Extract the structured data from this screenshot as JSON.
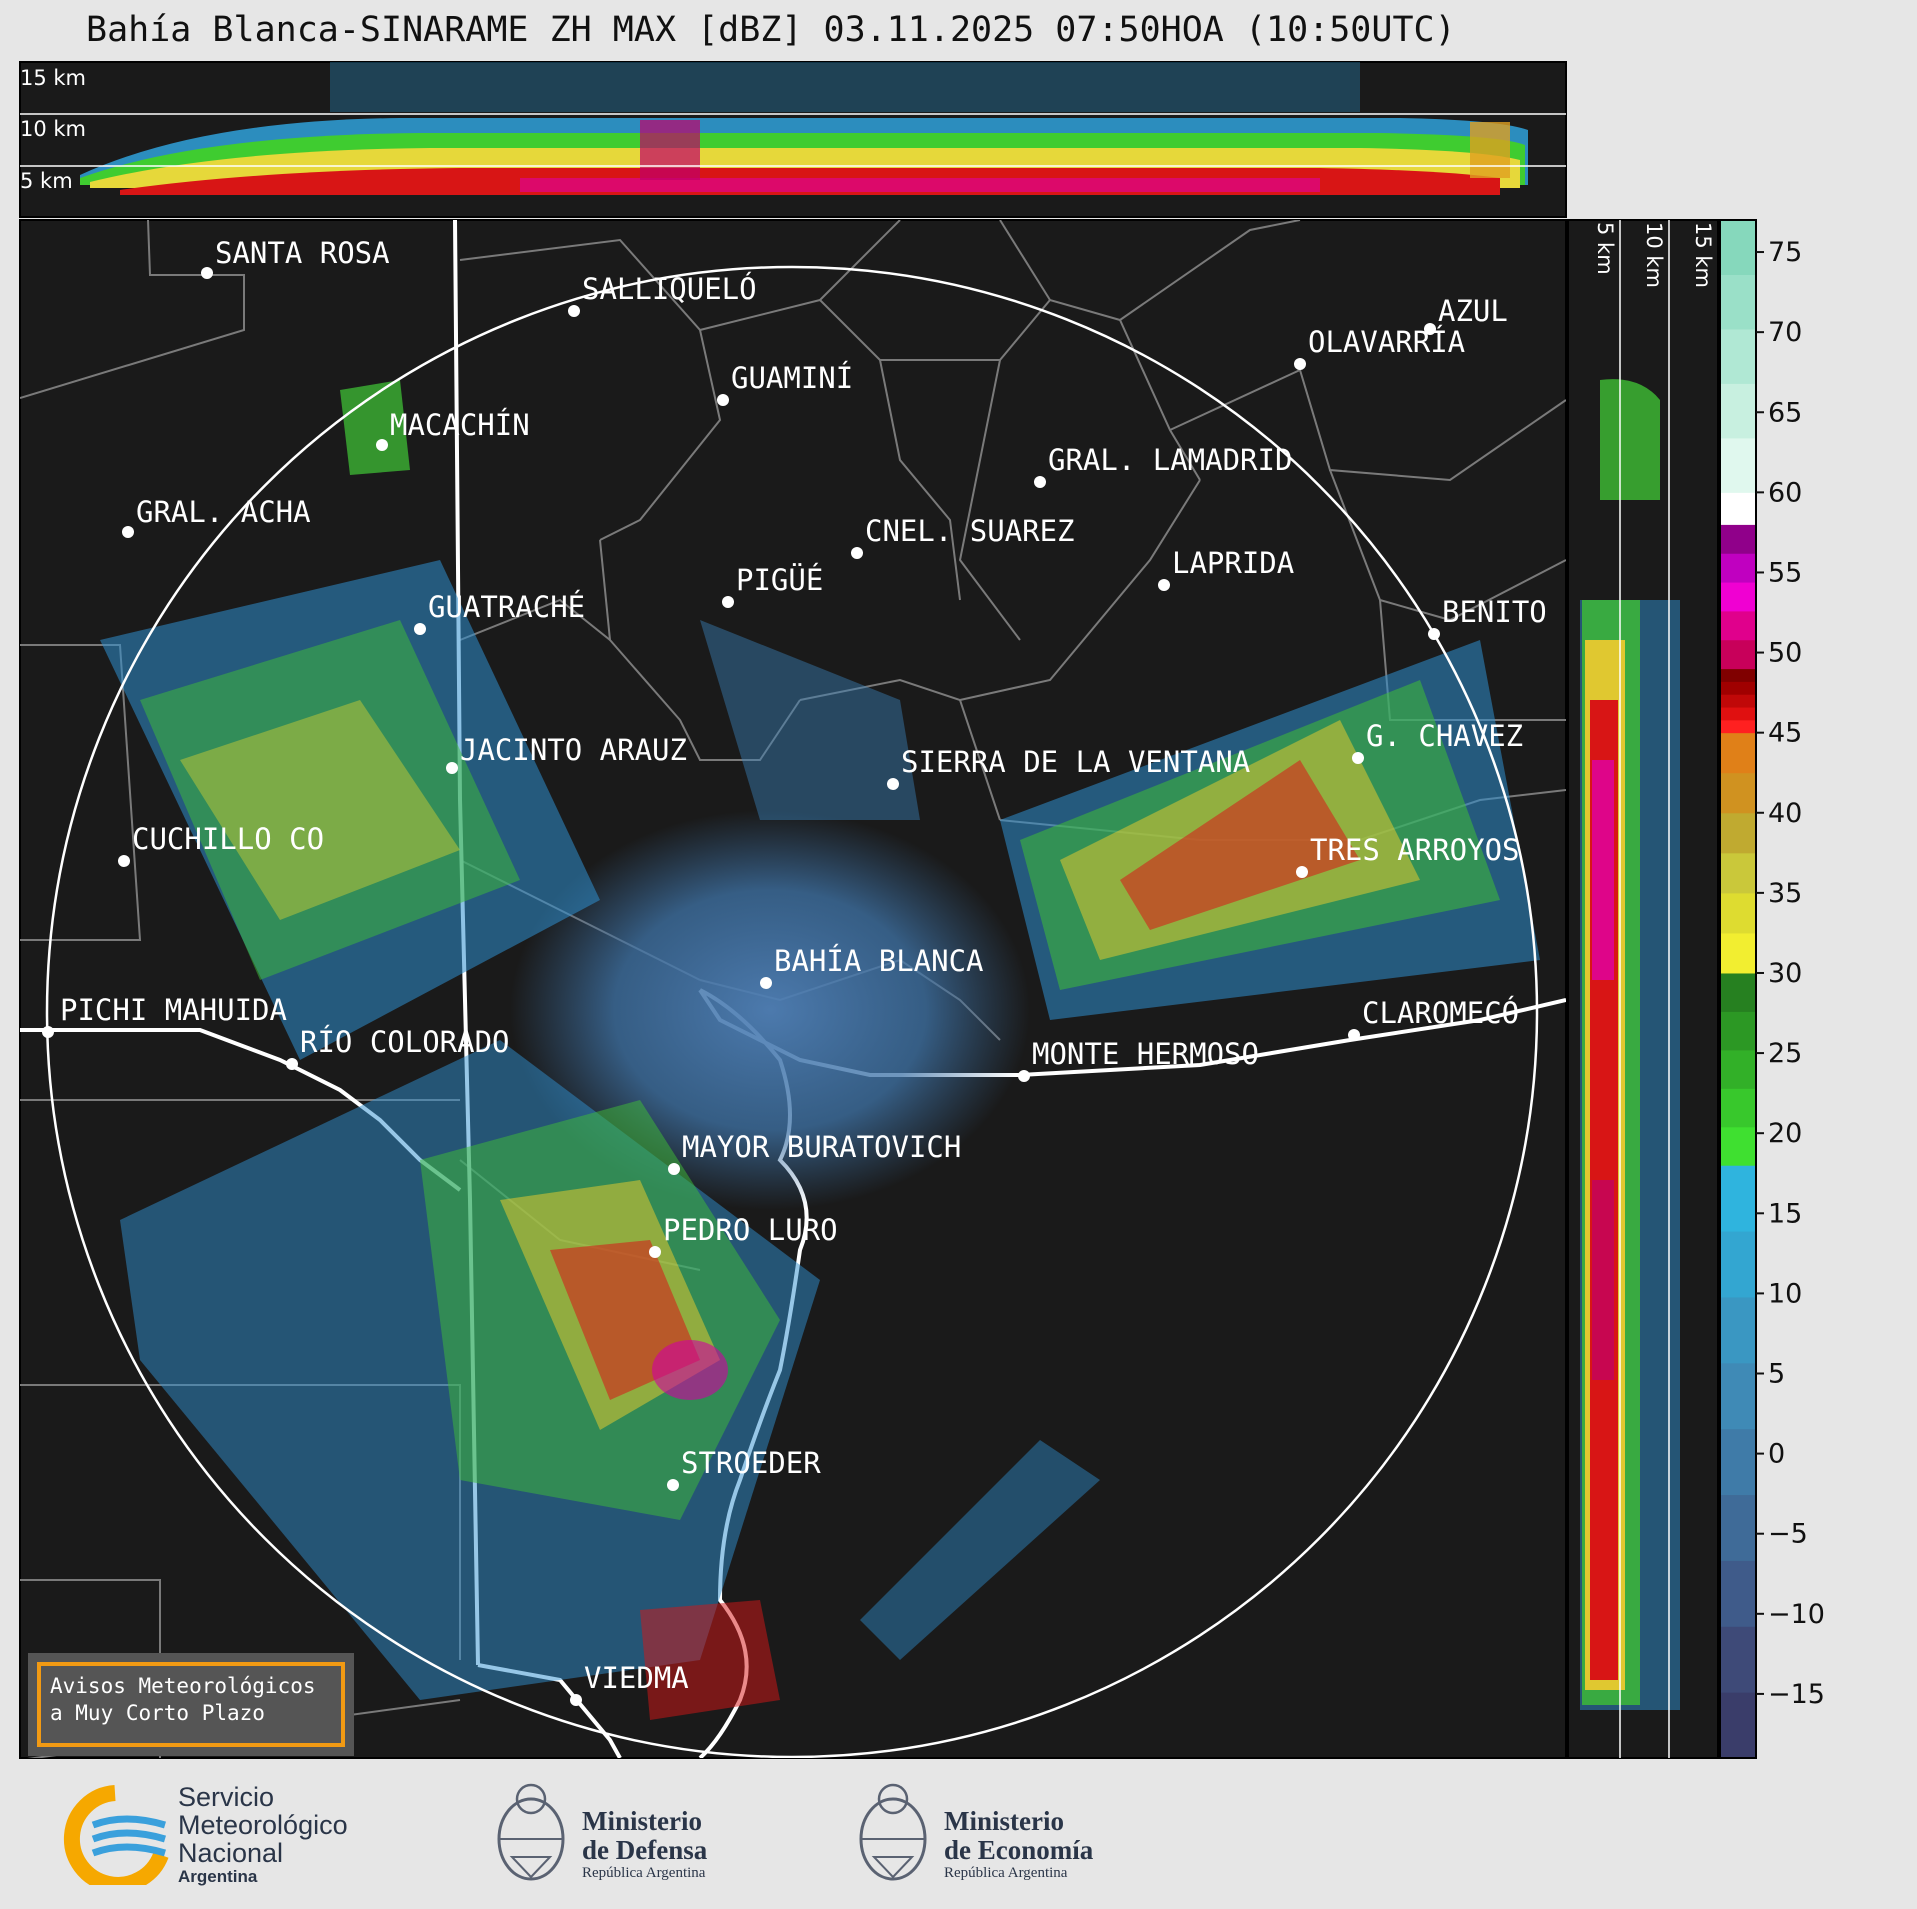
{
  "title": "Bahía Blanca-SINARAME ZH MAX [dBZ] 03.11.2025 07:50HOA (10:50UTC)",
  "top_panel_km_labels": [
    "15 km",
    "10 km",
    "5 km"
  ],
  "side_panel_km_labels": [
    "5 km",
    "10 km",
    "15 km"
  ],
  "cities": [
    {
      "name": "SANTA ROSA"
    },
    {
      "name": "SALLIQUELÓ"
    },
    {
      "name": "AZUL"
    },
    {
      "name": "OLAVARRÍA"
    },
    {
      "name": "GUAMINÍ"
    },
    {
      "name": "MACACHÍN"
    },
    {
      "name": "GRAL. LAMADRID"
    },
    {
      "name": "GRAL. ACHA"
    },
    {
      "name": "CNEL. SUAREZ"
    },
    {
      "name": "LAPRIDA"
    },
    {
      "name": "PIGÜÉ"
    },
    {
      "name": "GUATRACHÉ"
    },
    {
      "name": "BENITO"
    },
    {
      "name": "JACINTO ARAUZ"
    },
    {
      "name": "SIERRA DE LA VENTANA"
    },
    {
      "name": "G. CHAVEZ"
    },
    {
      "name": "CUCHILLO CO"
    },
    {
      "name": "TRES ARROYOS"
    },
    {
      "name": "BAHÍA BLANCA"
    },
    {
      "name": "PICHI MAHUIDA"
    },
    {
      "name": "CLAROMECÓ"
    },
    {
      "name": "RÍO COLORADO"
    },
    {
      "name": "MONTE HERMOSO"
    },
    {
      "name": "MAYOR BURATOVICH"
    },
    {
      "name": "PEDRO LURO"
    },
    {
      "name": "STROEDER"
    },
    {
      "name": "VIEDMA"
    }
  ],
  "colorbar": {
    "ticks": [
      "75",
      "70",
      "65",
      "60",
      "55",
      "50",
      "45",
      "40",
      "35",
      "30",
      "25",
      "20",
      "15",
      "10",
      "5",
      "0",
      "−5",
      "−10",
      "−15"
    ],
    "colors": {
      "cool": [
        "#3a3d6a",
        "#3e4a78",
        "#3f5b8a",
        "#3f6b98",
        "#3f7ba8",
        "#3f8ab6",
        "#3a97c2",
        "#33a6d1",
        "#2fb4de"
      ],
      "green": [
        "#3fe030",
        "#38c82c",
        "#32b028",
        "#2c9824",
        "#268020"
      ],
      "yellow": [
        "#f2ee30",
        "#dedc30",
        "#cac83a",
        "#c0aa30",
        "#d09220",
        "#e08018"
      ],
      "red": [
        "#ff2020",
        "#e01010",
        "#c00808",
        "#a00000",
        "#800000"
      ],
      "magenta": [
        "#c8005a",
        "#e0008c",
        "#f000d2",
        "#c000c0",
        "#90008a"
      ],
      "white": "#ffffff",
      "teal": [
        "#e0f8ee",
        "#c8f0e0",
        "#b0e8d4",
        "#9ae0c8",
        "#86d8bc"
      ]
    }
  },
  "notice": {
    "line1": "Avisos Meteorológicos",
    "line2": "a Muy Corto Plazo"
  },
  "logos": {
    "smn_line1": "Servicio",
    "smn_line2": "Meteorológico",
    "smn_line3": "Nacional",
    "smn_line4": "Argentina",
    "defensa_line1": "Ministerio",
    "defensa_line2": "de Defensa",
    "defensa_sub": "República Argentina",
    "economia_line1": "Ministerio",
    "economia_line2": "de Economía",
    "economia_sub": "República Argentina"
  }
}
